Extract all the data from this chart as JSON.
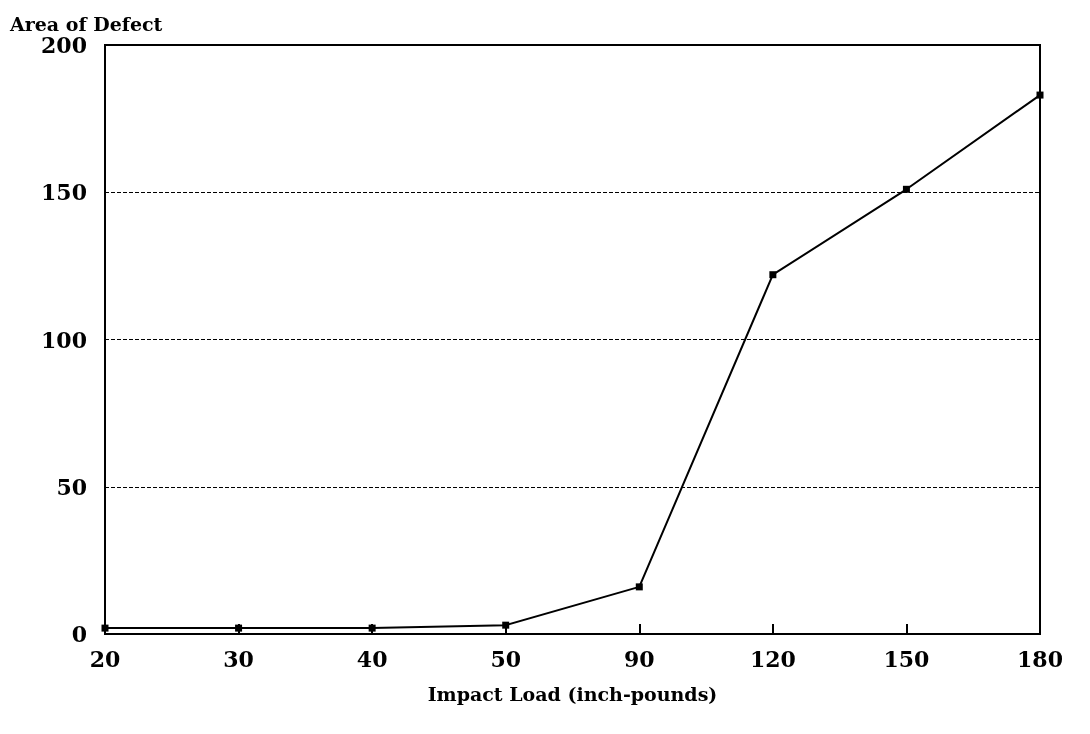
{
  "chart_data": {
    "type": "line",
    "ylabel": "Area of Defect",
    "xlabel": "Impact Load (inch-pounds)",
    "categories": [
      "20",
      "30",
      "40",
      "50",
      "90",
      "120",
      "150",
      "180"
    ],
    "series": [
      {
        "color": "#000000",
        "values": [
          2,
          2,
          2,
          3,
          16,
          122,
          151,
          183
        ]
      }
    ],
    "ylim": [
      0,
      200
    ],
    "yticks": [
      0,
      50,
      100,
      150,
      200
    ],
    "grid": "y",
    "marker": "square",
    "line_style": "solid"
  }
}
